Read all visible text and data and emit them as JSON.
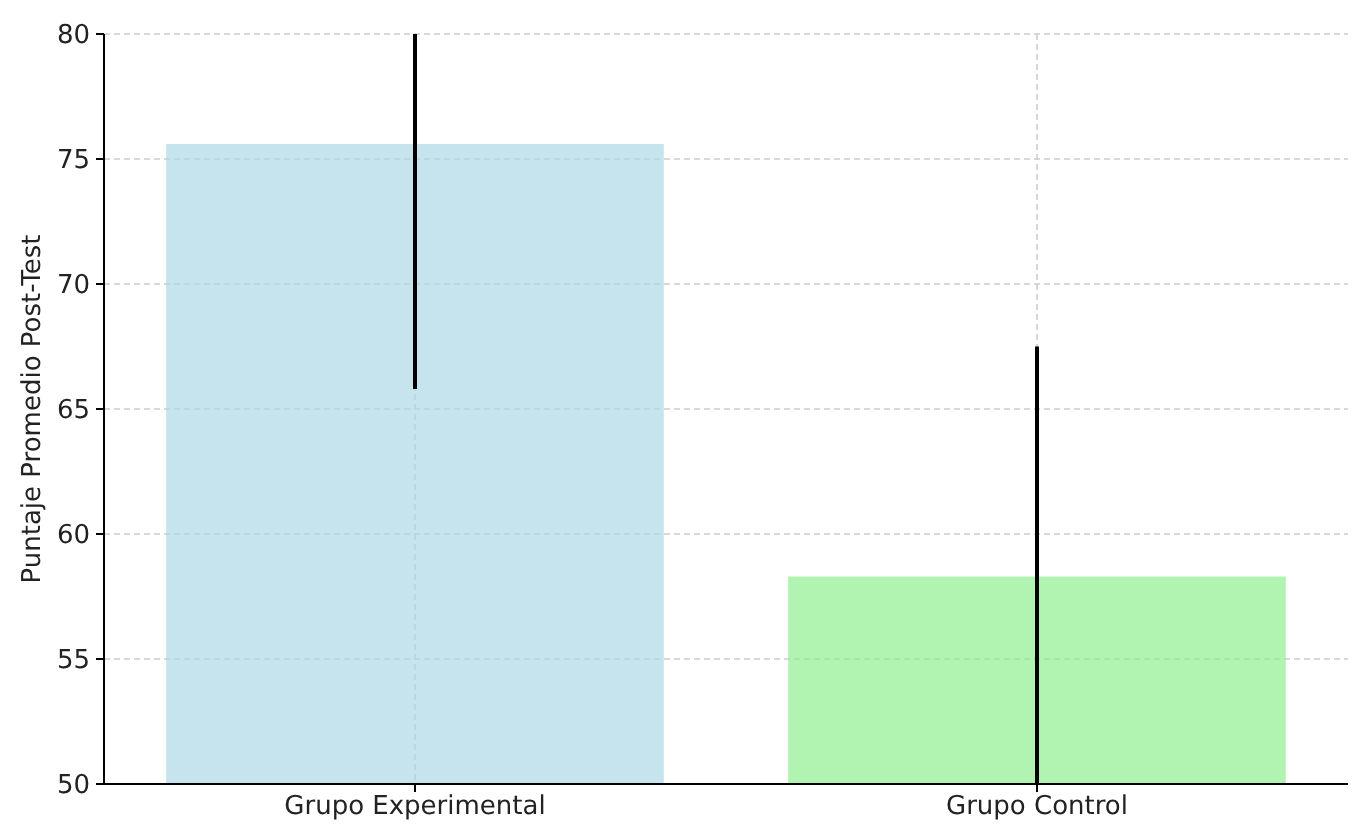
{
  "chart_data": {
    "type": "bar",
    "ylabel": "Puntaje Promedio Post-Test",
    "categories": [
      "Grupo Experimental",
      "Grupo Control"
    ],
    "values": [
      75.6,
      58.3
    ],
    "colors": [
      "#add8e6",
      "#90ee90"
    ],
    "errors": [
      9.8,
      9.2
    ],
    "ylim": [
      50,
      80
    ],
    "yticks": [
      50,
      55,
      60,
      65,
      70,
      75,
      80
    ],
    "grid": true
  }
}
